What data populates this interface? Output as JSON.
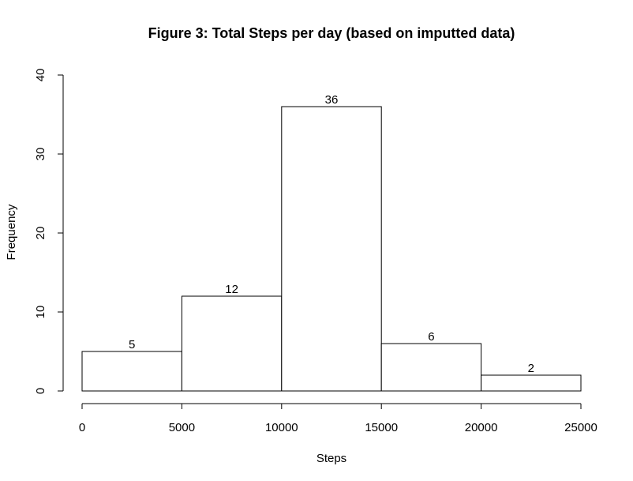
{
  "chart_data": {
    "type": "bar",
    "title": "Figure 3: Total Steps per day (based on imputted data)",
    "xlabel": "Steps",
    "ylabel": "Frequency",
    "bins": [
      {
        "from": 0,
        "to": 5000,
        "value": 5
      },
      {
        "from": 5000,
        "to": 10000,
        "value": 12
      },
      {
        "from": 10000,
        "to": 15000,
        "value": 36
      },
      {
        "from": 15000,
        "to": 20000,
        "value": 6
      },
      {
        "from": 20000,
        "to": 25000,
        "value": 2
      }
    ],
    "data_labels": [
      "5",
      "12",
      "36",
      "6",
      "2"
    ],
    "x_ticks": [
      0,
      5000,
      10000,
      15000,
      20000,
      25000
    ],
    "x_tick_labels": [
      "0",
      "5000",
      "10000",
      "15000",
      "20000",
      "25000"
    ],
    "y_ticks": [
      0,
      10,
      20,
      30,
      40
    ],
    "y_tick_labels": [
      "0",
      "10",
      "20",
      "30",
      "40"
    ],
    "xlim": [
      0,
      25000
    ],
    "ylim": [
      0,
      40
    ],
    "grid": false,
    "legend": "none",
    "colors": {
      "bar_fill": "#ffffff",
      "bar_stroke": "#000000"
    }
  }
}
